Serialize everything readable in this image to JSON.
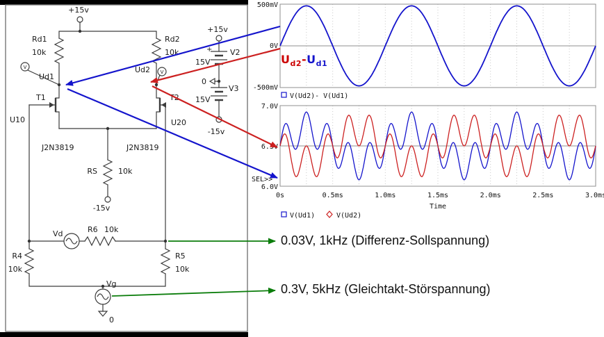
{
  "colors": {
    "trace_blue": "#1414cc",
    "trace_red": "#cc2020",
    "label_red": "#cc0000",
    "arrow_green": "#0b7d0b",
    "wire_gray": "#3c3c3c"
  },
  "schematic": {
    "vcc": "+15v",
    "rd1_name": "Rd1",
    "rd1_value": "10k",
    "rd2_name": "Rd2",
    "rd2_value": "10k",
    "probe_letter": "V",
    "ud1": "Ud1",
    "ud2": "Ud2",
    "t1": "T1",
    "t2": "T2",
    "u10": "U10",
    "u20": "U20",
    "t1_model": "J2N3819",
    "t2_model": "J2N3819",
    "rs_name": "RS",
    "rs_value": "10k",
    "vee": "-15v",
    "vd_name": "Vd",
    "r6_name": "R6",
    "r6_value": "10k",
    "r4_name": "R4",
    "r4_value": "10k",
    "r5_name": "R5",
    "r5_value": "10k",
    "vg_name": "Vg",
    "gnd_zero": "0",
    "supply": {
      "vcc": "+15v",
      "plus_mark": "+",
      "v2_name": "V2",
      "v2_value": "15V",
      "zero": "0",
      "v3_name": "V3",
      "v3_value": "15V",
      "vee": "-15v"
    }
  },
  "diff_label": {
    "u1": "U",
    "sub1": "d2",
    "minus": "-",
    "u2": "U",
    "sub2": "d1"
  },
  "annotations": {
    "diff": "0.03V, 1kHz (Differenz-Sollspannung)",
    "common": "0.3V, 5kHz (Gleichtakt-Störspannung)"
  },
  "chart_data": [
    {
      "type": "line",
      "x_unit": "ms",
      "x_range_ms": [
        0,
        3
      ],
      "ylim": [
        -0.5,
        0.5
      ],
      "yticks": [
        "500mV",
        "0V",
        "-500mV"
      ],
      "grid": true,
      "legend_position": "bottom-left",
      "series": [
        {
          "name": "V(Ud2)- V(Ud1)",
          "color": "#1414cc",
          "waveform": "sine",
          "offset": 0,
          "amp": 0.48,
          "freq_kHz": 1,
          "amp2": 0,
          "freq2_kHz": 0
        }
      ],
      "legend": [
        {
          "marker": "square",
          "label": "V(Ud2)- V(Ud1)"
        }
      ]
    },
    {
      "type": "line",
      "x_unit": "ms",
      "x_range_ms": [
        0,
        3
      ],
      "ylim": [
        6.0,
        7.0
      ],
      "yticks": [
        "7.0V",
        "6.5V",
        "6.0V"
      ],
      "xticks": [
        "0s",
        "0.5ms",
        "1.0ms",
        "1.5ms",
        "2.0ms",
        "2.5ms",
        "3.0ms"
      ],
      "xlabel": "Time",
      "sel_label": "SEL>>",
      "grid": true,
      "legend_position": "bottom-left",
      "series": [
        {
          "name": "V(Ud1)",
          "color": "#1414cc",
          "waveform": "sum-of-sines",
          "offset": 6.5,
          "amp": 0.21,
          "freq_kHz": 5,
          "amp2": 0.21,
          "freq2_kHz": 1
        },
        {
          "name": "V(Ud2)",
          "color": "#cc2020",
          "waveform": "sum-of-sines",
          "offset": 6.5,
          "amp": 0.21,
          "freq_kHz": 5,
          "amp2": -0.21,
          "freq2_kHz": 1
        }
      ],
      "legend": [
        {
          "marker": "square",
          "label": "V(Ud1)"
        },
        {
          "marker": "diamond",
          "label": "V(Ud2)"
        }
      ]
    }
  ]
}
